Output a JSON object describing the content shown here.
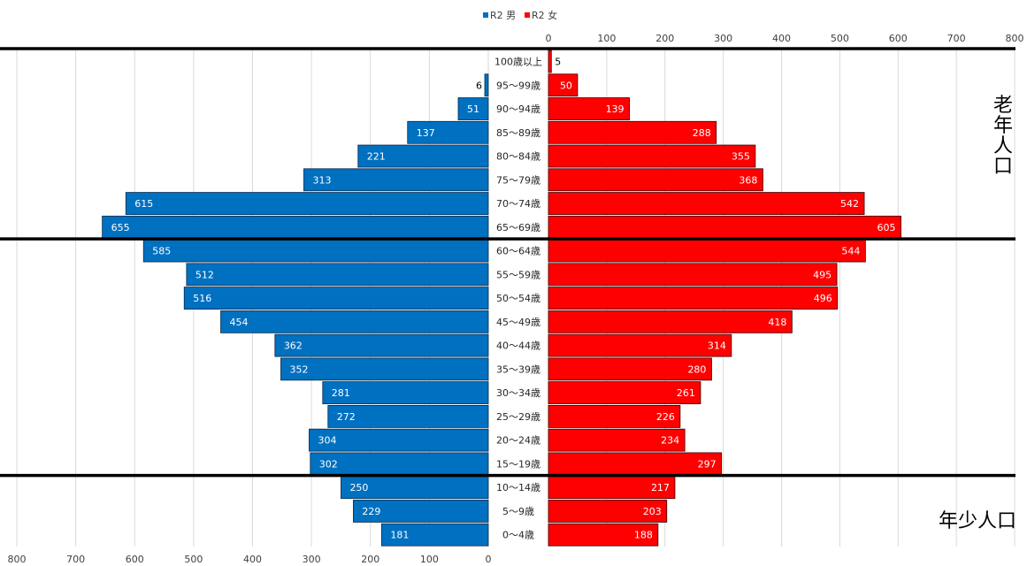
{
  "chart_data": {
    "type": "bar",
    "orientation": "horizontal",
    "subtype": "population-pyramid",
    "legend": {
      "position": "top-center",
      "entries": [
        "R2 男",
        "R2 女"
      ]
    },
    "categories": [
      "0～4歳",
      "5～9歳",
      "10～14歳",
      "15～19歳",
      "20～24歳",
      "25～29歳",
      "30～34歳",
      "35～39歳",
      "40～44歳",
      "45～49歳",
      "50～54歳",
      "55～59歳",
      "60～64歳",
      "65～69歳",
      "70～74歳",
      "75～79歳",
      "80～84歳",
      "85～89歳",
      "90～94歳",
      "95～99歳",
      "100歳以上"
    ],
    "series": [
      {
        "name": "R2 男",
        "color": "#0070C0",
        "values": [
          181,
          229,
          250,
          302,
          304,
          272,
          281,
          352,
          362,
          454,
          516,
          512,
          585,
          655,
          615,
          313,
          221,
          137,
          51,
          6,
          null
        ]
      },
      {
        "name": "R2 女",
        "color": "#FF0000",
        "values": [
          188,
          203,
          217,
          297,
          234,
          226,
          261,
          280,
          314,
          418,
          496,
          495,
          544,
          605,
          542,
          368,
          355,
          288,
          139,
          50,
          5
        ]
      }
    ],
    "x_range_male": [
      800,
      0
    ],
    "x_range_female": [
      0,
      800
    ],
    "male_ticks": [
      "800",
      "700",
      "600",
      "500",
      "400",
      "300",
      "200",
      "100",
      "0"
    ],
    "female_ticks": [
      "0",
      "100",
      "200",
      "300",
      "400",
      "500",
      "600",
      "700",
      "800"
    ],
    "grid": true,
    "group_dividers_after": [
      "10～14歳",
      "60～64歳"
    ],
    "annotations": [
      "老年人口",
      "年少人口"
    ]
  }
}
